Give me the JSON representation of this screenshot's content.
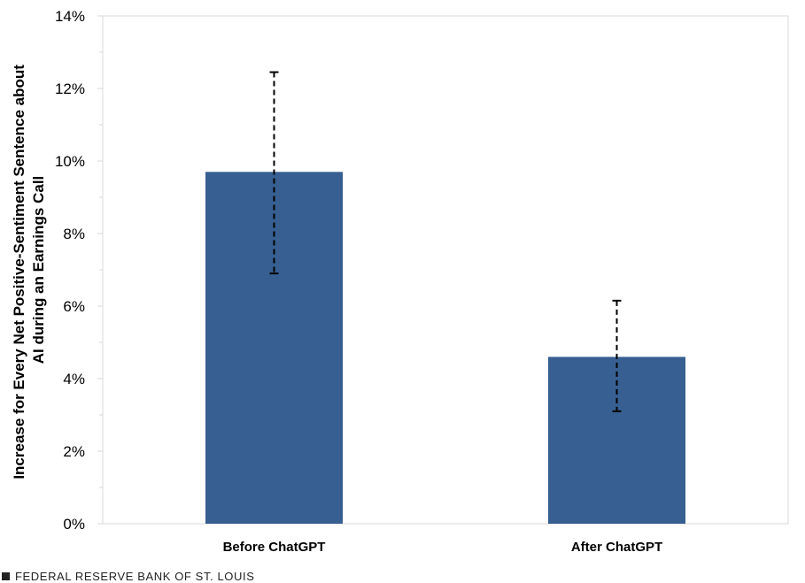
{
  "chart_data": {
    "type": "bar",
    "categories": [
      "Before ChatGPT",
      "After ChatGPT"
    ],
    "values": [
      9.7,
      4.6
    ],
    "error_low": [
      6.9,
      3.1
    ],
    "error_high": [
      12.45,
      6.15
    ],
    "ylabel_lines": [
      "Increase for Every Net Positive-Sentiment Sentence about",
      "AI during an Earnings Call"
    ],
    "ylim": [
      0,
      14
    ],
    "yticks": [
      0,
      2,
      4,
      6,
      8,
      10,
      12,
      14
    ],
    "ytick_suffix": "%",
    "grid": false,
    "bar_color": "#375f91",
    "error_bar_style": "dashed"
  },
  "footer": {
    "source": "FEDERAL RESERVE BANK OF ST. LOUIS"
  }
}
